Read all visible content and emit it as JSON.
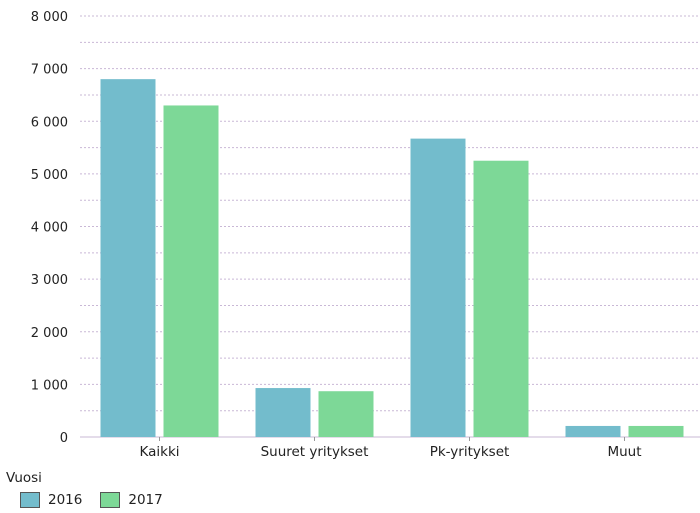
{
  "chart_data": {
    "type": "bar",
    "categories": [
      "Kaikki",
      "Suuret yritykset",
      "Pk-yritykset",
      "Muut"
    ],
    "series": [
      {
        "name": "2016",
        "values": [
          6800,
          930,
          5670,
          210
        ],
        "color": "#73bccc"
      },
      {
        "name": "2017",
        "values": [
          6300,
          870,
          5250,
          210
        ],
        "color": "#7dd897"
      }
    ],
    "ylim": [
      0,
      8000
    ],
    "yticks": [
      "0",
      "1 000",
      "2 000",
      "3 000",
      "4 000",
      "5 000",
      "6 000",
      "7 000",
      "8 000"
    ],
    "ytick_values": [
      0,
      1000,
      2000,
      3000,
      4000,
      5000,
      6000,
      7000,
      8000
    ],
    "grid": true,
    "legend_title": "Vuosi",
    "legend_position": "bottom-left"
  }
}
